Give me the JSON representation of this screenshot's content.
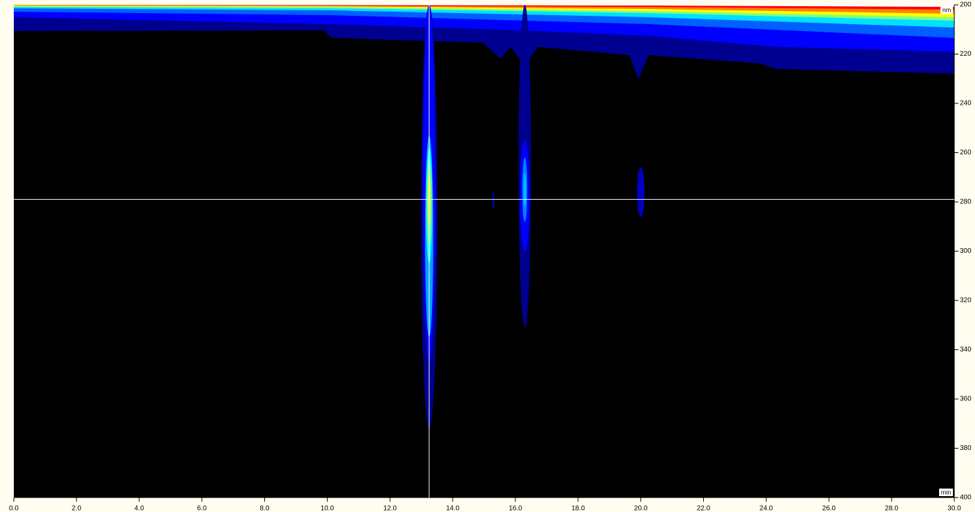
{
  "chart_data": {
    "type": "contour",
    "x_unit": "min",
    "y_unit": "nm",
    "xlim": [
      0,
      30
    ],
    "ylim": [
      200,
      400
    ],
    "xticks": [
      {
        "value": 0,
        "label": "0.0"
      },
      {
        "value": 2,
        "label": "2.0"
      },
      {
        "value": 4,
        "label": "4.0"
      },
      {
        "value": 6,
        "label": "6.0"
      },
      {
        "value": 8,
        "label": "8.0"
      },
      {
        "value": 10,
        "label": "10.0"
      },
      {
        "value": 12,
        "label": "12.0"
      },
      {
        "value": 14,
        "label": "14.0"
      },
      {
        "value": 16,
        "label": "16.0"
      },
      {
        "value": 18,
        "label": "18.0"
      },
      {
        "value": 20,
        "label": "20.0"
      },
      {
        "value": 22,
        "label": "22.0"
      },
      {
        "value": 24,
        "label": "24.0"
      },
      {
        "value": 26,
        "label": "26.0"
      },
      {
        "value": 28,
        "label": "28.0"
      },
      {
        "value": 30,
        "label": "30.0"
      }
    ],
    "yticks": [
      200,
      220,
      240,
      260,
      280,
      300,
      320,
      340,
      360,
      380,
      400
    ],
    "cursor": {
      "x": 13.25,
      "y": 279,
      "color": "#ffffff"
    },
    "blobs": [
      {
        "x": 13.25,
        "ylim": [
          200,
          372
        ],
        "halfwidth": 0.26,
        "color": "#000090"
      },
      {
        "x": 13.25,
        "ylim": [
          200,
          345
        ],
        "halfwidth": 0.2,
        "color": "#0000ff"
      },
      {
        "x": 13.25,
        "ylim": [
          253,
          335
        ],
        "halfwidth": 0.13,
        "color": "#00a0ff"
      },
      {
        "x": 13.25,
        "ylim": [
          258,
          305
        ],
        "halfwidth": 0.1,
        "color": "#00ffff"
      },
      {
        "x": 13.25,
        "ylim": [
          263,
          298
        ],
        "halfwidth": 0.07,
        "color": "#80ff80"
      },
      {
        "x": 13.25,
        "ylim": [
          268,
          290
        ],
        "halfwidth": 0.04,
        "color": "#ffff00"
      },
      {
        "x": 16.3,
        "ylim": [
          200,
          331
        ],
        "halfwidth": 0.2,
        "color": "#000090"
      },
      {
        "x": 16.3,
        "ylim": [
          255,
          300
        ],
        "halfwidth": 0.15,
        "color": "#0000ff"
      },
      {
        "x": 16.3,
        "ylim": [
          262,
          288
        ],
        "halfwidth": 0.08,
        "color": "#0080ff"
      },
      {
        "x": 16.3,
        "ylim": [
          268,
          282
        ],
        "halfwidth": 0.04,
        "color": "#00c0ff"
      },
      {
        "x": 20.0,
        "ylim": [
          266,
          286
        ],
        "halfwidth": 0.12,
        "color": "#0000c0"
      },
      {
        "x": 15.3,
        "ylim": [
          276,
          283
        ],
        "halfwidth": 0.03,
        "color": "#0000c0"
      }
    ]
  }
}
